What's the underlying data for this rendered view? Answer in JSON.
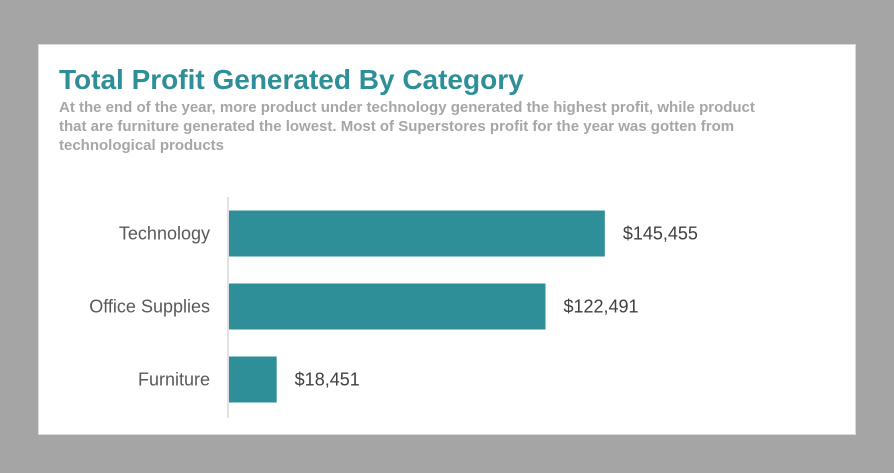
{
  "chart_data": {
    "type": "bar",
    "orientation": "horizontal",
    "title": "Total Profit Generated By Category",
    "subtitle": "At the end of the year, more product under technology generated the highest profit, while product that are furniture generated the lowest. Most of Superstores profit for the year was gotten from technological products",
    "categories": [
      "Technology",
      "Office Supplies",
      "Furniture"
    ],
    "values": [
      145455,
      122491,
      18451
    ],
    "value_labels": [
      "$145,455",
      "$122,491",
      "$18,451"
    ],
    "xlabel": "",
    "ylabel": "",
    "xlim": [
      0,
      209000
    ],
    "grid": false,
    "legend": "none",
    "colors": {
      "bar": "#2e8f98",
      "title": "#2e8f98",
      "subtitle": "#a6a6a6",
      "category_text": "#595959",
      "value_text": "#404040",
      "axis": "#d9d9d9"
    }
  }
}
